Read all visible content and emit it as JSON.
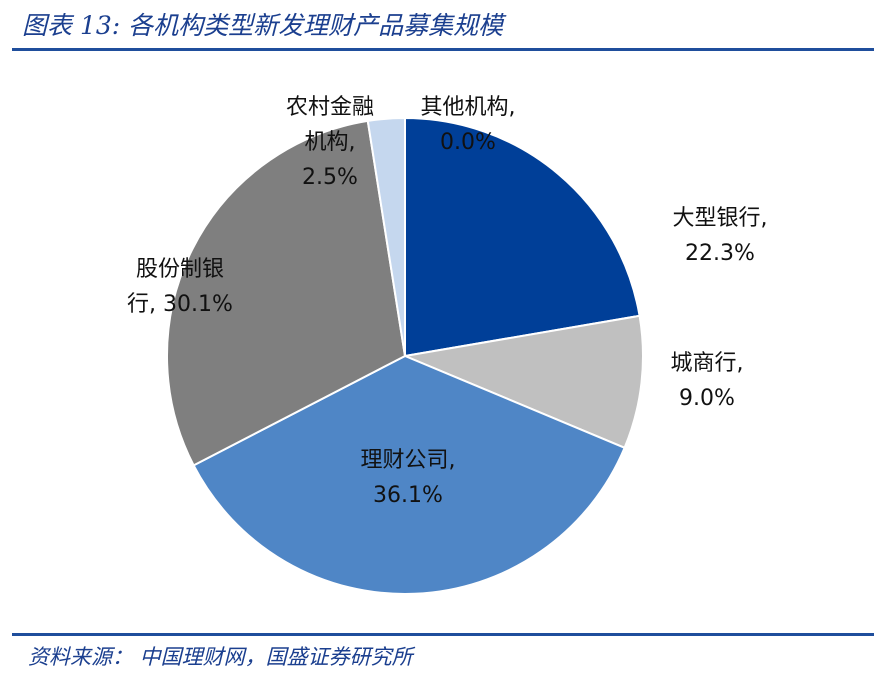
{
  "figure": {
    "title": "图表 13:  各机构类型新发理财产品募集规模",
    "source": "资料来源：  中国理财网，国盛证券研究所"
  },
  "chart_data": {
    "type": "pie",
    "title": "",
    "slices": [
      {
        "name": "其他机构",
        "value": 0.0,
        "value_label": "0.0%",
        "label_lines": [
          "其他机构,",
          "0.0%"
        ],
        "color": "#1b3f8f"
      },
      {
        "name": "大型银行",
        "value": 22.3,
        "value_label": "22.3%",
        "label_lines": [
          "大型银行,",
          "22.3%"
        ],
        "color": "#003f98"
      },
      {
        "name": "城商行",
        "value": 9.0,
        "value_label": "9.0%",
        "label_lines": [
          "城商行,",
          "9.0%"
        ],
        "color": "#c0c0c0"
      },
      {
        "name": "理财公司",
        "value": 36.1,
        "value_label": "36.1%",
        "label_lines": [
          "理财公司,",
          "36.1%"
        ],
        "color": "#4f86c6"
      },
      {
        "name": "股份制银行",
        "value": 30.1,
        "value_label": "30.1%",
        "label_lines": [
          "股份制银",
          "行, 30.1%"
        ],
        "color": "#7f7f7f"
      },
      {
        "name": "农村金融机构",
        "value": 2.5,
        "value_label": "2.5%",
        "label_lines": [
          "农村金融",
          "机构,",
          "2.5%"
        ],
        "color": "#c5d7ee"
      }
    ],
    "start_angle_deg": 0,
    "direction": "clockwise",
    "legend": "none",
    "labels": "outside-or-inside per slice"
  }
}
